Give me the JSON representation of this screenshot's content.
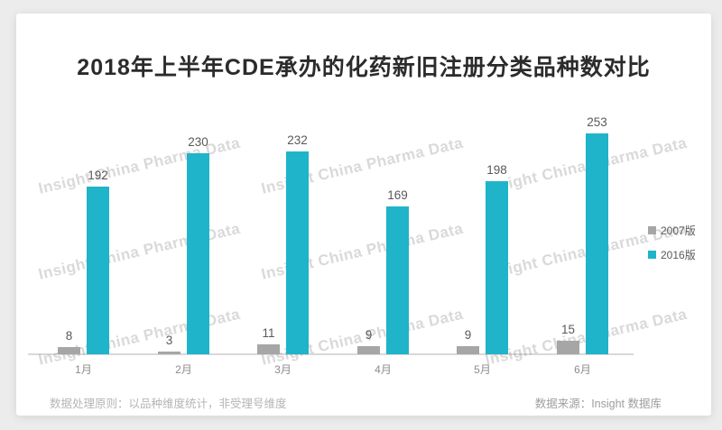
{
  "title": "2018年上半年CDE承办的化药新旧注册分类品种数对比",
  "watermark_text": "Insight China Pharma Data",
  "legend": {
    "items": [
      {
        "label": "2007版",
        "color": "#a6a6a6"
      },
      {
        "label": "2016版",
        "color": "#1fb4c9"
      }
    ]
  },
  "footer": {
    "left_note": "数据处理原则：以品种维度统计，非受理号维度",
    "right_note": "数据来源：Insight 数据库"
  },
  "colors": {
    "series_2007": "#a6a6a6",
    "series_2016": "#1fb4c9",
    "axis": "#d9d9d9",
    "card_background": "#ffffff",
    "page_background": "#ececec"
  },
  "chart_data": {
    "type": "bar",
    "title": "2018年上半年CDE承办的化药新旧注册分类品种数对比",
    "categories": [
      "1月",
      "2月",
      "3月",
      "4月",
      "5月",
      "6月"
    ],
    "series": [
      {
        "name": "2007版",
        "color": "#a6a6a6",
        "values": [
          8,
          3,
          11,
          9,
          9,
          15
        ]
      },
      {
        "name": "2016版",
        "color": "#1fb4c9",
        "values": [
          192,
          230,
          232,
          169,
          198,
          253
        ]
      }
    ],
    "xlabel": "",
    "ylabel": "",
    "ylim": [
      0,
      260
    ],
    "grid": false,
    "value_labels": true,
    "legend_position": "right"
  }
}
